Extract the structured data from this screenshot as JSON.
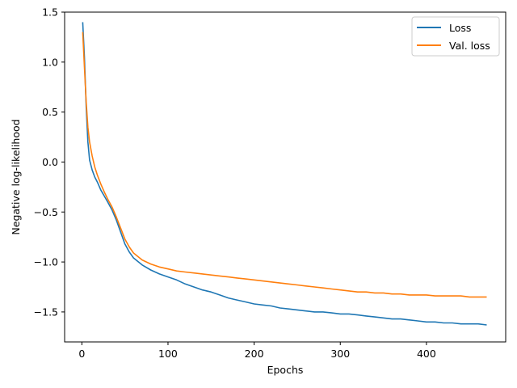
{
  "chart_data": {
    "type": "line",
    "title": "",
    "xlabel": "Epochs",
    "ylabel": "Negative log-likelihood",
    "xlim": [
      -20,
      492
    ],
    "ylim": [
      -1.8,
      1.5
    ],
    "xticks": [
      0,
      100,
      200,
      300,
      400
    ],
    "xtick_labels": [
      "0",
      "100",
      "200",
      "300",
      "400"
    ],
    "yticks": [
      1.5,
      1.0,
      0.5,
      0.0,
      -0.5,
      -1.0,
      -1.5
    ],
    "ytick_labels": [
      "1.5",
      "1.0",
      "0.5",
      "0.0",
      "−0.5",
      "−1.0",
      "−1.5"
    ],
    "grid": false,
    "legend_position": "top-right",
    "series": [
      {
        "name": "Loss",
        "color": "#1f77b4",
        "points": [
          [
            1,
            1.4
          ],
          [
            3,
            1.05
          ],
          [
            5,
            0.55
          ],
          [
            7,
            0.2
          ],
          [
            9,
            0.02
          ],
          [
            12,
            -0.08
          ],
          [
            15,
            -0.15
          ],
          [
            18,
            -0.2
          ],
          [
            22,
            -0.28
          ],
          [
            26,
            -0.34
          ],
          [
            30,
            -0.4
          ],
          [
            35,
            -0.48
          ],
          [
            40,
            -0.58
          ],
          [
            45,
            -0.7
          ],
          [
            50,
            -0.82
          ],
          [
            55,
            -0.9
          ],
          [
            60,
            -0.96
          ],
          [
            70,
            -1.03
          ],
          [
            80,
            -1.08
          ],
          [
            90,
            -1.12
          ],
          [
            100,
            -1.15
          ],
          [
            110,
            -1.18
          ],
          [
            120,
            -1.22
          ],
          [
            130,
            -1.25
          ],
          [
            140,
            -1.28
          ],
          [
            150,
            -1.3
          ],
          [
            160,
            -1.33
          ],
          [
            170,
            -1.36
          ],
          [
            180,
            -1.38
          ],
          [
            190,
            -1.4
          ],
          [
            200,
            -1.42
          ],
          [
            210,
            -1.43
          ],
          [
            220,
            -1.44
          ],
          [
            230,
            -1.46
          ],
          [
            240,
            -1.47
          ],
          [
            250,
            -1.48
          ],
          [
            260,
            -1.49
          ],
          [
            270,
            -1.5
          ],
          [
            280,
            -1.5
          ],
          [
            290,
            -1.51
          ],
          [
            300,
            -1.52
          ],
          [
            310,
            -1.52
          ],
          [
            320,
            -1.53
          ],
          [
            330,
            -1.54
          ],
          [
            340,
            -1.55
          ],
          [
            350,
            -1.56
          ],
          [
            360,
            -1.57
          ],
          [
            370,
            -1.57
          ],
          [
            380,
            -1.58
          ],
          [
            390,
            -1.59
          ],
          [
            400,
            -1.6
          ],
          [
            410,
            -1.6
          ],
          [
            420,
            -1.61
          ],
          [
            430,
            -1.61
          ],
          [
            440,
            -1.62
          ],
          [
            450,
            -1.62
          ],
          [
            460,
            -1.62
          ],
          [
            470,
            -1.63
          ]
        ]
      },
      {
        "name": "Val. loss",
        "color": "#ff7f0e",
        "points": [
          [
            1,
            1.3
          ],
          [
            3,
            0.95
          ],
          [
            5,
            0.6
          ],
          [
            7,
            0.35
          ],
          [
            9,
            0.2
          ],
          [
            12,
            0.06
          ],
          [
            15,
            -0.05
          ],
          [
            18,
            -0.13
          ],
          [
            22,
            -0.22
          ],
          [
            26,
            -0.3
          ],
          [
            30,
            -0.37
          ],
          [
            35,
            -0.45
          ],
          [
            40,
            -0.55
          ],
          [
            45,
            -0.66
          ],
          [
            50,
            -0.77
          ],
          [
            55,
            -0.85
          ],
          [
            60,
            -0.91
          ],
          [
            70,
            -0.98
          ],
          [
            80,
            -1.02
          ],
          [
            90,
            -1.05
          ],
          [
            100,
            -1.07
          ],
          [
            110,
            -1.09
          ],
          [
            120,
            -1.1
          ],
          [
            130,
            -1.11
          ],
          [
            140,
            -1.12
          ],
          [
            150,
            -1.13
          ],
          [
            160,
            -1.14
          ],
          [
            170,
            -1.15
          ],
          [
            180,
            -1.16
          ],
          [
            190,
            -1.17
          ],
          [
            200,
            -1.18
          ],
          [
            210,
            -1.19
          ],
          [
            220,
            -1.2
          ],
          [
            230,
            -1.21
          ],
          [
            240,
            -1.22
          ],
          [
            250,
            -1.23
          ],
          [
            260,
            -1.24
          ],
          [
            270,
            -1.25
          ],
          [
            280,
            -1.26
          ],
          [
            290,
            -1.27
          ],
          [
            300,
            -1.28
          ],
          [
            310,
            -1.29
          ],
          [
            320,
            -1.3
          ],
          [
            330,
            -1.3
          ],
          [
            340,
            -1.31
          ],
          [
            350,
            -1.31
          ],
          [
            360,
            -1.32
          ],
          [
            370,
            -1.32
          ],
          [
            380,
            -1.33
          ],
          [
            390,
            -1.33
          ],
          [
            400,
            -1.33
          ],
          [
            410,
            -1.34
          ],
          [
            420,
            -1.34
          ],
          [
            430,
            -1.34
          ],
          [
            440,
            -1.34
          ],
          [
            450,
            -1.35
          ],
          [
            460,
            -1.35
          ],
          [
            470,
            -1.35
          ]
        ]
      }
    ]
  }
}
